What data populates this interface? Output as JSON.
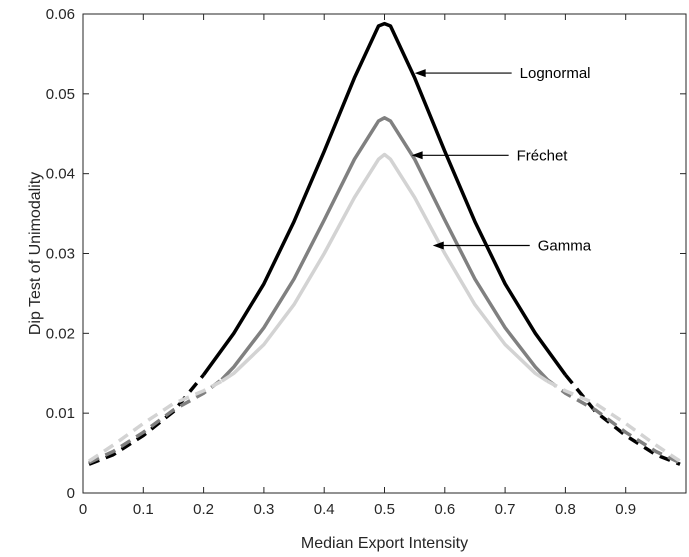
{
  "chart_data": {
    "type": "line",
    "title": "",
    "xlabel": "Median Export Intensity",
    "ylabel": "Dip Test of Unimodality",
    "xlim": [
      0,
      1
    ],
    "ylim": [
      0,
      0.06
    ],
    "xticks": [
      0,
      0.1,
      0.2,
      0.3,
      0.4,
      0.5,
      0.6,
      0.7,
      0.8,
      0.9
    ],
    "xtick_labels": [
      "0",
      "0.1",
      "0.2",
      "0.3",
      "0.4",
      "0.5",
      "0.6",
      "0.7",
      "0.8",
      "0.9"
    ],
    "yticks": [
      0,
      0.01,
      0.02,
      0.03,
      0.04,
      0.05,
      0.06
    ],
    "ytick_labels": [
      "0",
      "0.01",
      "0.02",
      "0.03",
      "0.04",
      "0.05",
      "0.06"
    ],
    "grid": false,
    "legend": "none",
    "series": [
      {
        "name": "Lognormal",
        "color": "#000000",
        "points": [
          [
            0.01,
            0.0036
          ],
          [
            0.05,
            0.0048
          ],
          [
            0.1,
            0.0072
          ],
          [
            0.15,
            0.0102
          ],
          [
            0.2,
            0.0148
          ],
          [
            0.25,
            0.02
          ],
          [
            0.3,
            0.0262
          ],
          [
            0.35,
            0.034
          ],
          [
            0.4,
            0.0428
          ],
          [
            0.45,
            0.052
          ],
          [
            0.49,
            0.0585
          ],
          [
            0.5,
            0.0588
          ],
          [
            0.51,
            0.0585
          ],
          [
            0.55,
            0.052
          ],
          [
            0.6,
            0.0428
          ],
          [
            0.65,
            0.034
          ],
          [
            0.7,
            0.0262
          ],
          [
            0.75,
            0.02
          ],
          [
            0.8,
            0.0148
          ],
          [
            0.85,
            0.0102
          ],
          [
            0.9,
            0.0072
          ],
          [
            0.95,
            0.0048
          ],
          [
            0.99,
            0.0036
          ]
        ],
        "solid_range": [
          0.2,
          0.8
        ]
      },
      {
        "name": "Fréchet",
        "color": "#808080",
        "points": [
          [
            0.01,
            0.0038
          ],
          [
            0.05,
            0.0052
          ],
          [
            0.1,
            0.0076
          ],
          [
            0.15,
            0.0104
          ],
          [
            0.2,
            0.0125
          ],
          [
            0.23,
            0.0142
          ],
          [
            0.25,
            0.0158
          ],
          [
            0.3,
            0.0207
          ],
          [
            0.35,
            0.0268
          ],
          [
            0.4,
            0.0342
          ],
          [
            0.45,
            0.0418
          ],
          [
            0.49,
            0.0466
          ],
          [
            0.5,
            0.047
          ],
          [
            0.51,
            0.0466
          ],
          [
            0.55,
            0.0418
          ],
          [
            0.6,
            0.0342
          ],
          [
            0.65,
            0.0268
          ],
          [
            0.7,
            0.0207
          ],
          [
            0.75,
            0.0158
          ],
          [
            0.77,
            0.0142
          ],
          [
            0.8,
            0.0125
          ],
          [
            0.85,
            0.0104
          ],
          [
            0.9,
            0.0076
          ],
          [
            0.95,
            0.0052
          ],
          [
            0.99,
            0.0038
          ]
        ],
        "solid_range": [
          0.23,
          0.77
        ]
      },
      {
        "name": "Gamma",
        "color": "#d3d3d3",
        "points": [
          [
            0.01,
            0.004
          ],
          [
            0.05,
            0.006
          ],
          [
            0.1,
            0.0087
          ],
          [
            0.15,
            0.0112
          ],
          [
            0.2,
            0.0128
          ],
          [
            0.23,
            0.014
          ],
          [
            0.25,
            0.015
          ],
          [
            0.3,
            0.0186
          ],
          [
            0.35,
            0.0236
          ],
          [
            0.4,
            0.03
          ],
          [
            0.45,
            0.037
          ],
          [
            0.49,
            0.0418
          ],
          [
            0.5,
            0.0424
          ],
          [
            0.51,
            0.0418
          ],
          [
            0.55,
            0.037
          ],
          [
            0.6,
            0.03
          ],
          [
            0.65,
            0.0236
          ],
          [
            0.7,
            0.0186
          ],
          [
            0.75,
            0.015
          ],
          [
            0.77,
            0.014
          ],
          [
            0.8,
            0.0128
          ],
          [
            0.85,
            0.0112
          ],
          [
            0.9,
            0.0087
          ],
          [
            0.95,
            0.006
          ],
          [
            0.99,
            0.004
          ]
        ],
        "solid_range": [
          0.23,
          0.77
        ]
      }
    ],
    "annotations": [
      {
        "text": "Lognormal",
        "arrow_tip": [
          0.55,
          0.0526
        ]
      },
      {
        "text": "Fréchet",
        "arrow_tip": [
          0.545,
          0.0423
        ]
      },
      {
        "text": "Gamma",
        "arrow_tip": [
          0.58,
          0.031
        ]
      }
    ]
  }
}
